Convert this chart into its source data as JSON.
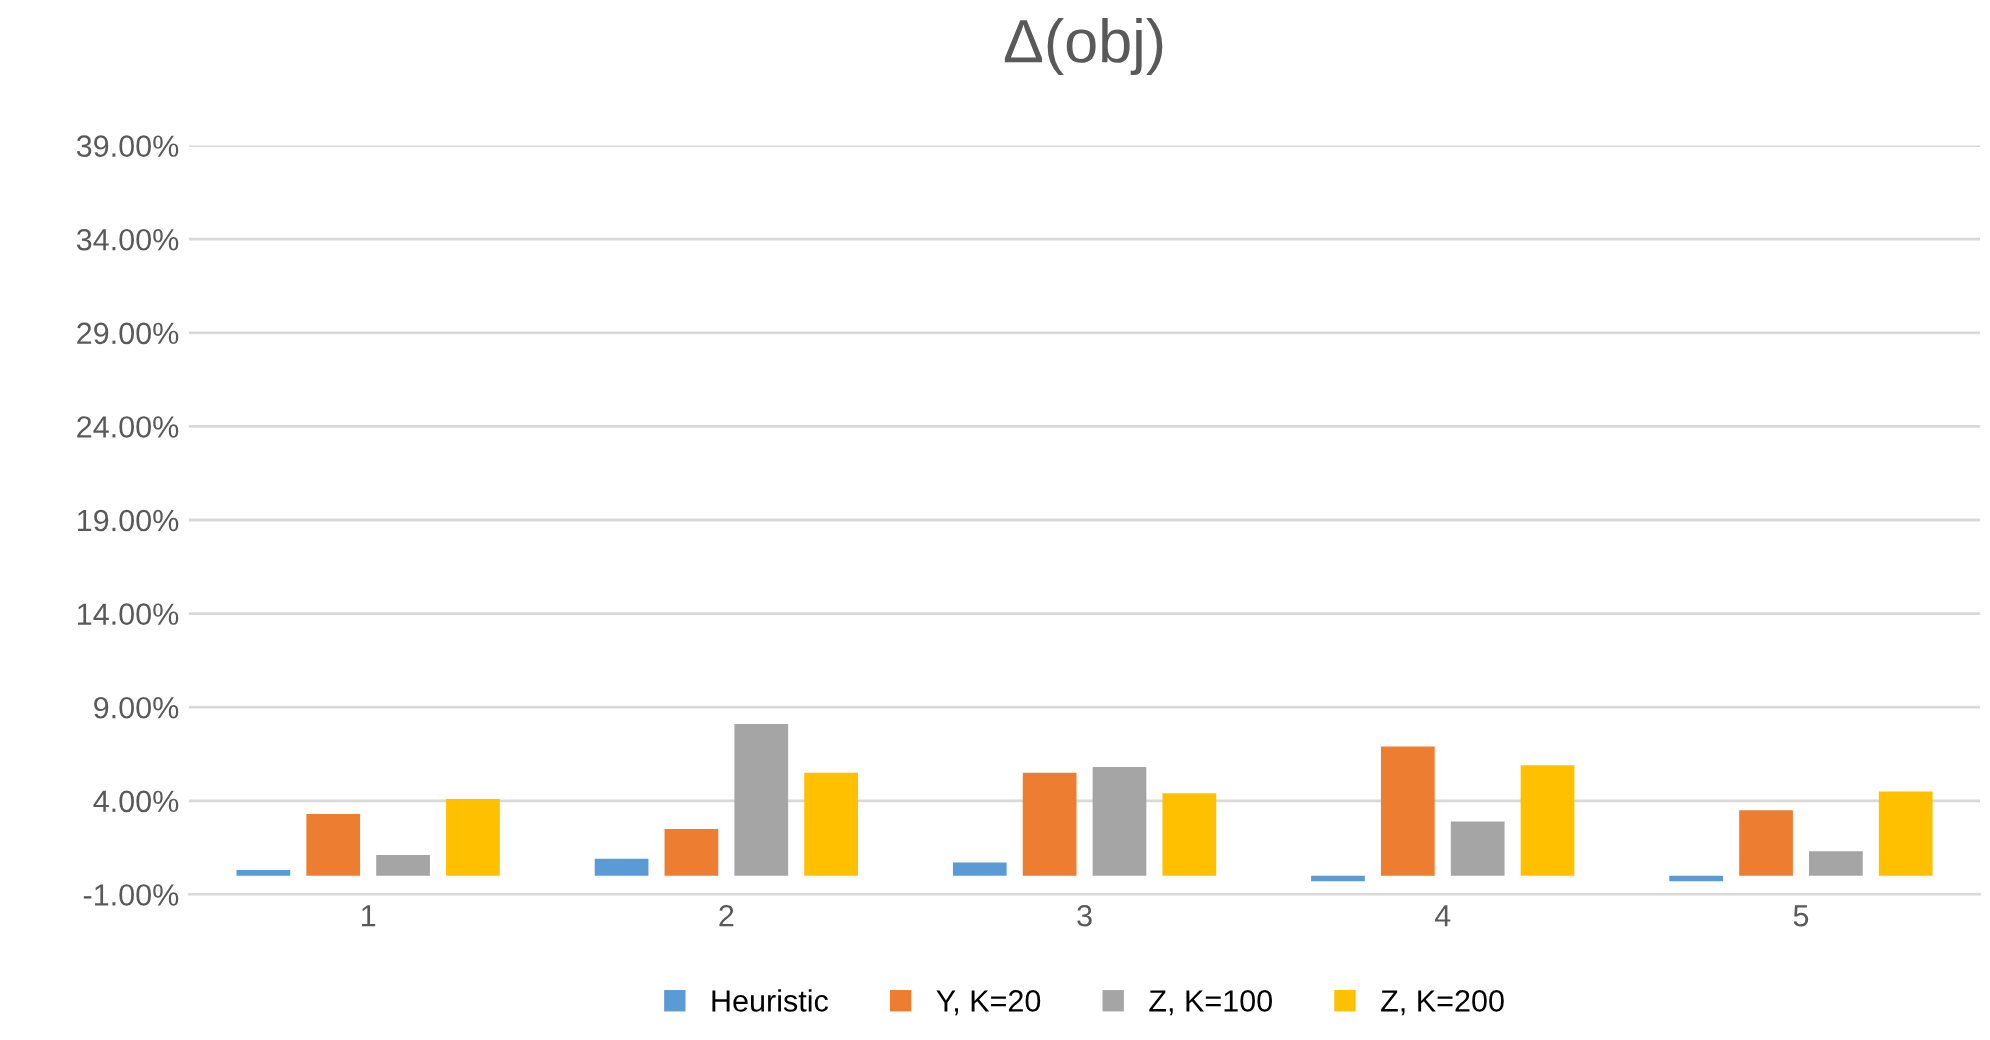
{
  "chart_data": {
    "type": "bar",
    "title": "Δ(obj)",
    "categories": [
      "1",
      "2",
      "3",
      "4",
      "5"
    ],
    "series": [
      {
        "name": "Heuristic",
        "color": "#5b9bd5",
        "values": [
          0.3,
          0.9,
          0.7,
          -0.3,
          -0.3
        ]
      },
      {
        "name": "Y, K=20",
        "color": "#ed7d31",
        "values": [
          3.3,
          2.5,
          5.5,
          6.9,
          3.5
        ]
      },
      {
        "name": "Z, K=100",
        "color": "#a5a5a5",
        "values": [
          1.1,
          8.1,
          5.8,
          2.9,
          1.3
        ]
      },
      {
        "name": "Z, K=200",
        "color": "#ffc000",
        "values": [
          4.1,
          5.5,
          4.4,
          5.9,
          4.5
        ]
      }
    ],
    "ylim": [
      -1,
      39
    ],
    "yticks": [
      {
        "value": -1,
        "label": "-1.00%"
      },
      {
        "value": 4,
        "label": "4.00%"
      },
      {
        "value": 9,
        "label": "9.00%"
      },
      {
        "value": 14,
        "label": "14.00%"
      },
      {
        "value": 19,
        "label": "19.00%"
      },
      {
        "value": 24,
        "label": "24.00%"
      },
      {
        "value": 29,
        "label": "29.00%"
      },
      {
        "value": 34,
        "label": "34.00%"
      },
      {
        "value": 39,
        "label": "39.00%"
      }
    ],
    "grid": "y",
    "legend": "bottom"
  }
}
